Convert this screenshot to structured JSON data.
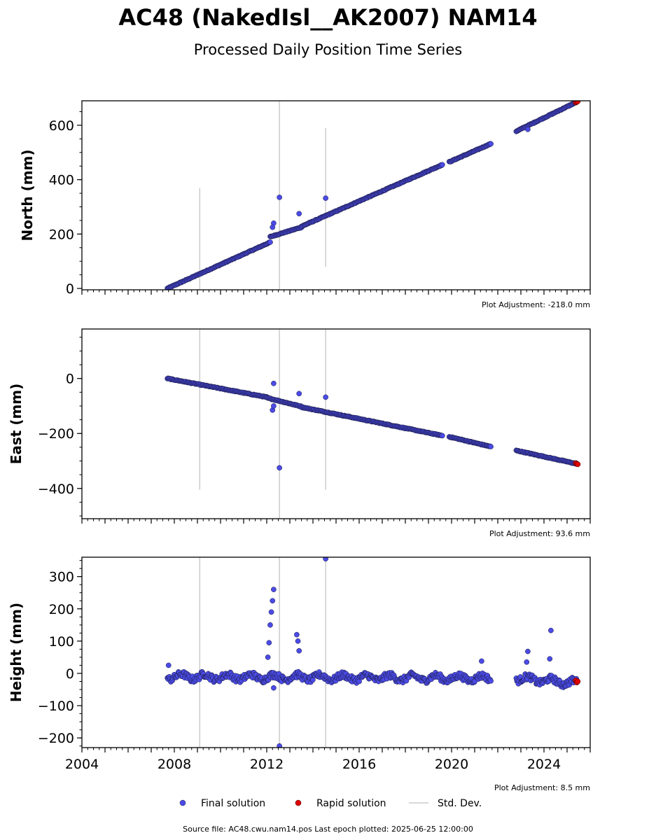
{
  "title": "AC48 (NakedIsl__AK2007) NAM14",
  "subtitle": "Processed Daily Position Time Series",
  "source_text": "Source file: AC48.cwu.nam14.pos  Last epoch plotted: 2025-06-25 12:00:00",
  "legend": {
    "final_label": "Final solution",
    "rapid_label": "Rapid solution",
    "std_label": "Std. Dev."
  },
  "colors": {
    "final": "#4b4be6",
    "final_edge": "#1a1a40",
    "rapid": "#e00000",
    "std": "#cccccc",
    "axis": "#000000"
  },
  "chart_data": [
    {
      "type": "scatter",
      "ylabel": "North (mm)",
      "adjustment_text": "Plot Adjustment: -218.0 mm",
      "xlim": [
        2004.0,
        2026.0
      ],
      "ylim": [
        -5,
        690
      ],
      "yticks": [
        0,
        200,
        400,
        600
      ],
      "yminor_step": 50,
      "xticks": [
        2004,
        2008,
        2012,
        2016,
        2020,
        2024
      ],
      "show_xticklabels": false,
      "segments": [
        {
          "x": [
            2007.7,
            2012.15
          ],
          "y": [
            0,
            170
          ]
        },
        {
          "x": [
            2012.15,
            2013.5
          ],
          "y": [
            190,
            225
          ]
        },
        {
          "x": [
            2013.5,
            2019.6
          ],
          "y": [
            228,
            455
          ]
        },
        {
          "x": [
            2019.9,
            2021.7
          ],
          "y": [
            465,
            532
          ]
        },
        {
          "x": [
            2022.8,
            2025.4
          ],
          "y": [
            578,
            685
          ]
        }
      ],
      "outliers": [
        {
          "x": 2012.55,
          "y": 335
        },
        {
          "x": 2014.55,
          "y": 332
        },
        {
          "x": 2013.4,
          "y": 275
        },
        {
          "x": 2012.3,
          "y": 240
        },
        {
          "x": 2012.25,
          "y": 225
        },
        {
          "x": 2023.3,
          "y": 585
        }
      ],
      "rapid_points": [
        {
          "x": 2025.38,
          "y": 684
        },
        {
          "x": 2025.42,
          "y": 686
        },
        {
          "x": 2025.46,
          "y": 688
        }
      ],
      "std_lines": [
        {
          "x": 2009.1,
          "y0": -5,
          "y1": 370
        },
        {
          "x": 2012.55,
          "y0": -5,
          "y1": 690
        },
        {
          "x": 2014.55,
          "y0": 80,
          "y1": 590
        }
      ]
    },
    {
      "type": "scatter",
      "ylabel": "East (mm)",
      "adjustment_text": "Plot Adjustment: 93.6 mm",
      "xlim": [
        2004.0,
        2026.0
      ],
      "ylim": [
        -510,
        180
      ],
      "yticks": [
        0,
        -200,
        -400
      ],
      "yminor_step": 50,
      "xticks": [
        2004,
        2008,
        2012,
        2016,
        2020,
        2024
      ],
      "show_xticklabels": false,
      "segments": [
        {
          "x": [
            2007.7,
            2012.0
          ],
          "y": [
            0,
            -68
          ]
        },
        {
          "x": [
            2012.0,
            2013.5
          ],
          "y": [
            -70,
            -102
          ]
        },
        {
          "x": [
            2013.5,
            2019.6
          ],
          "y": [
            -104,
            -208
          ]
        },
        {
          "x": [
            2019.9,
            2021.7
          ],
          "y": [
            -212,
            -248
          ]
        },
        {
          "x": [
            2022.8,
            2025.4
          ],
          "y": [
            -262,
            -310
          ]
        }
      ],
      "outliers": [
        {
          "x": 2012.55,
          "y": -325
        },
        {
          "x": 2012.3,
          "y": -18
        },
        {
          "x": 2014.55,
          "y": -68
        },
        {
          "x": 2013.4,
          "y": -55
        },
        {
          "x": 2012.25,
          "y": -115
        },
        {
          "x": 2012.3,
          "y": -100
        }
      ],
      "rapid_points": [
        {
          "x": 2025.38,
          "y": -308
        },
        {
          "x": 2025.42,
          "y": -310
        },
        {
          "x": 2025.46,
          "y": -312
        }
      ],
      "std_lines": [
        {
          "x": 2009.1,
          "y0": -405,
          "y1": 180
        },
        {
          "x": 2012.55,
          "y0": -510,
          "y1": 180
        },
        {
          "x": 2014.55,
          "y0": -405,
          "y1": 180
        }
      ]
    },
    {
      "type": "scatter",
      "ylabel": "Height (mm)",
      "adjustment_text": "Plot Adjustment: 8.5 mm",
      "xlim": [
        2004.0,
        2026.0
      ],
      "ylim": [
        -230,
        360
      ],
      "yticks": [
        -200,
        -100,
        0,
        100,
        200,
        300
      ],
      "yminor_step": 25,
      "xticks": [
        2004,
        2008,
        2012,
        2016,
        2020,
        2024
      ],
      "show_xticklabels": true,
      "segments": [
        {
          "x": [
            2007.7,
            2021.7
          ],
          "y": [
            -10,
            -15
          ]
        },
        {
          "x": [
            2022.8,
            2025.4
          ],
          "y": [
            -15,
            -30
          ]
        }
      ],
      "outliers": [
        {
          "x": 2012.3,
          "y": 260
        },
        {
          "x": 2012.25,
          "y": 225
        },
        {
          "x": 2012.2,
          "y": 190
        },
        {
          "x": 2012.15,
          "y": 150
        },
        {
          "x": 2012.1,
          "y": 95
        },
        {
          "x": 2012.05,
          "y": 50
        },
        {
          "x": 2012.3,
          "y": -45
        },
        {
          "x": 2013.3,
          "y": 120
        },
        {
          "x": 2013.35,
          "y": 100
        },
        {
          "x": 2013.4,
          "y": 70
        },
        {
          "x": 2014.55,
          "y": 355
        },
        {
          "x": 2012.55,
          "y": -225
        },
        {
          "x": 2023.3,
          "y": 68
        },
        {
          "x": 2024.3,
          "y": 133
        },
        {
          "x": 2023.25,
          "y": 35
        },
        {
          "x": 2024.25,
          "y": 45
        },
        {
          "x": 2021.3,
          "y": 38
        },
        {
          "x": 2007.75,
          "y": 25
        }
      ],
      "rapid_points": [
        {
          "x": 2025.38,
          "y": -22
        },
        {
          "x": 2025.42,
          "y": -28
        },
        {
          "x": 2025.46,
          "y": -25
        }
      ],
      "std_lines": [
        {
          "x": 2009.1,
          "y0": -230,
          "y1": 360
        },
        {
          "x": 2012.55,
          "y0": -230,
          "y1": 360
        },
        {
          "x": 2014.55,
          "y0": -230,
          "y1": 360
        }
      ]
    }
  ]
}
